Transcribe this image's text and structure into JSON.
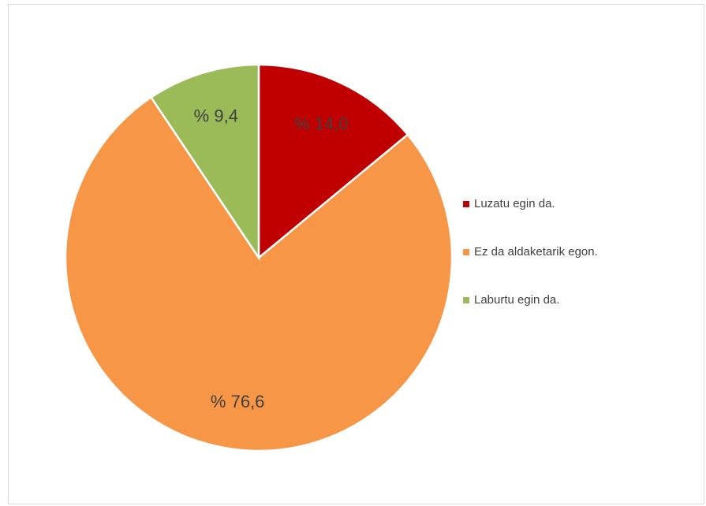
{
  "chart_data": {
    "type": "pie",
    "categories": [
      "Luzatu egin da.",
      "Ez da aldaketarik egon.",
      "Laburtu egin da."
    ],
    "values": [
      14.0,
      76.6,
      9.4
    ],
    "value_labels": [
      "% 14,0",
      "% 76,6",
      "% 9,4"
    ],
    "colors": [
      "#c00000",
      "#f79646",
      "#9bbb59"
    ],
    "legend": "right"
  }
}
